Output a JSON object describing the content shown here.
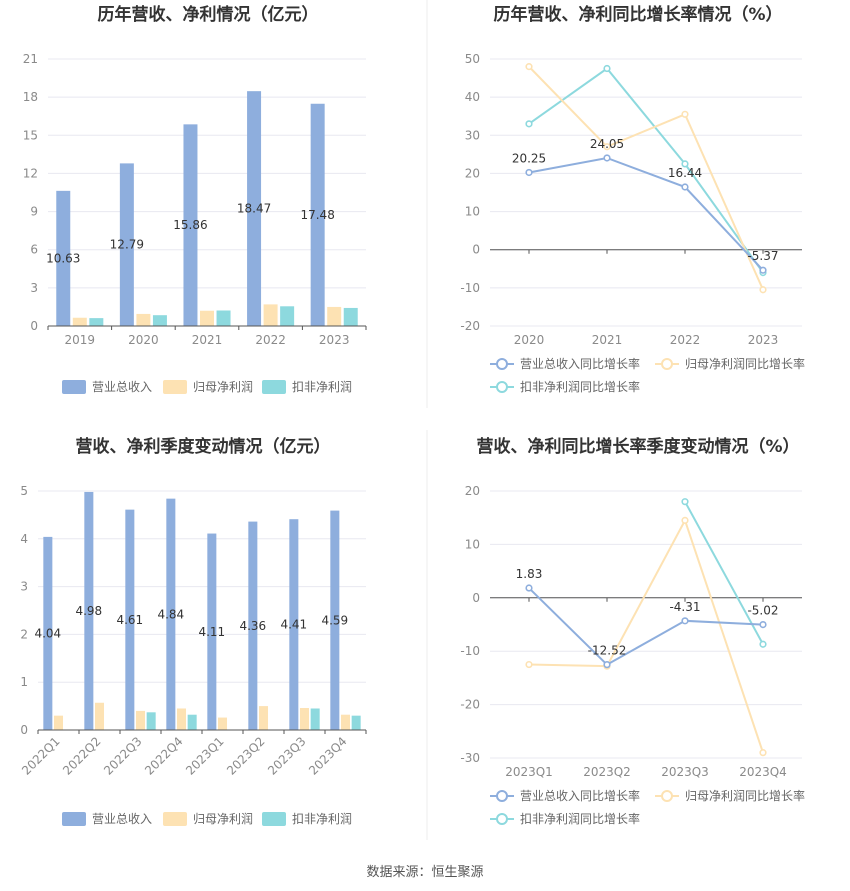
{
  "colors": {
    "revenue": "#8eaedd",
    "parent_profit": "#fde2b3",
    "deducted_profit": "#8dd9de",
    "grid": "#e8e8f0",
    "axis": "#555555",
    "divider": "#ececec"
  },
  "source_text": "数据来源：恒生聚源",
  "chart_data": [
    {
      "id": "annual-bar",
      "type": "bar",
      "title": "历年营收、净利情况（亿元）",
      "categories": [
        "2019",
        "2020",
        "2021",
        "2022",
        "2023"
      ],
      "ylim": [
        0,
        21
      ],
      "yticks": [
        0,
        3,
        6,
        9,
        12,
        15,
        18,
        21
      ],
      "tick_decimals": 0,
      "rotate_labels": false,
      "series": [
        {
          "name": "营业总收入",
          "values": [
            10.63,
            12.79,
            15.86,
            18.47,
            17.48
          ],
          "show_labels": true
        },
        {
          "name": "归母净利润",
          "values": [
            0.65,
            0.95,
            1.2,
            1.7,
            1.5
          ],
          "show_labels": false
        },
        {
          "name": "扣非净利润",
          "values": [
            0.62,
            0.85,
            1.22,
            1.55,
            1.42
          ],
          "show_labels": false
        }
      ],
      "legend": "bottom"
    },
    {
      "id": "annual-line",
      "type": "line",
      "title": "历年营收、净利同比增长率情况（%）",
      "categories": [
        "2020",
        "2021",
        "2022",
        "2023"
      ],
      "ylim": [
        -20,
        50
      ],
      "yticks": [
        -20,
        -10,
        0,
        10,
        20,
        30,
        40,
        50
      ],
      "series": [
        {
          "name": "营业总收入同比增长率",
          "values": [
            20.25,
            24.05,
            16.44,
            -5.37
          ],
          "show_labels": true
        },
        {
          "name": "归母净利润同比增长率",
          "values": [
            48,
            27,
            35.5,
            -10.5
          ],
          "show_labels": false
        },
        {
          "name": "扣非净利润同比增长率",
          "values": [
            33,
            47.5,
            22.5,
            -6
          ],
          "show_labels": false
        }
      ],
      "legend": "bottom"
    },
    {
      "id": "quarterly-bar",
      "type": "bar",
      "title": "营收、净利季度变动情况（亿元）",
      "categories": [
        "2022Q1",
        "2022Q2",
        "2022Q3",
        "2022Q4",
        "2023Q1",
        "2023Q2",
        "2023Q3",
        "2023Q4"
      ],
      "ylim": [
        0,
        5
      ],
      "yticks": [
        0,
        1,
        2,
        3,
        4,
        5
      ],
      "tick_decimals": 0,
      "rotate_labels": true,
      "series": [
        {
          "name": "营业总收入",
          "values": [
            4.04,
            4.98,
            4.61,
            4.84,
            4.11,
            4.36,
            4.41,
            4.59
          ],
          "show_labels": true
        },
        {
          "name": "归母净利润",
          "values": [
            0.3,
            0.57,
            0.4,
            0.45,
            0.26,
            0.5,
            0.46,
            0.32
          ],
          "show_labels": false
        },
        {
          "name": "扣非净利润",
          "values": [
            0.0,
            0.0,
            0.37,
            0.32,
            0.0,
            0.0,
            0.45,
            0.3
          ],
          "show_labels": false
        }
      ],
      "legend": "bottom"
    },
    {
      "id": "quarterly-line",
      "type": "line",
      "title": "营收、净利同比增长率季度变动情况（%）",
      "categories": [
        "2023Q1",
        "2023Q2",
        "2023Q3",
        "2023Q4"
      ],
      "ylim": [
        -30,
        20
      ],
      "yticks": [
        -30,
        -20,
        -10,
        0,
        10,
        20
      ],
      "series": [
        {
          "name": "营业总收入同比增长率",
          "values": [
            1.83,
            -12.52,
            -4.31,
            -5.02
          ],
          "show_labels": true
        },
        {
          "name": "归母净利润同比增长率",
          "values": [
            -12.5,
            -12.8,
            14.5,
            -29
          ],
          "show_labels": false
        },
        {
          "name": "扣非净利润同比增长率",
          "values": [
            null,
            null,
            18,
            -8.7
          ],
          "show_labels": false
        }
      ],
      "legend": "bottom"
    }
  ]
}
